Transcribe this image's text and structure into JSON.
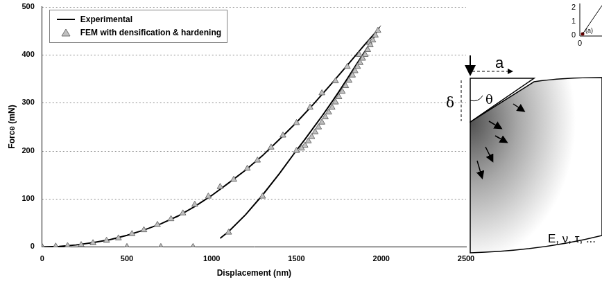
{
  "chart_data": {
    "type": "line",
    "x_label": "Displacement (nm)",
    "y_label": "Force (mN)",
    "xlim": [
      0,
      2500
    ],
    "xticks": [
      0,
      500,
      1000,
      1500,
      2000,
      2500
    ],
    "ylim": [
      0,
      500
    ],
    "yticks": [
      0,
      100,
      200,
      300,
      400,
      500
    ],
    "grid": true,
    "legend": "upper left",
    "series": [
      {
        "name": "Experimental",
        "color": "#000000",
        "type": "line",
        "marker": "none",
        "x": [
          0,
          100,
          200,
          300,
          400,
          500,
          600,
          700,
          800,
          900,
          1000,
          1100,
          1200,
          1300,
          1400,
          1500,
          1600,
          1700,
          1800,
          1900,
          1980,
          1950,
          1900,
          1850,
          1800,
          1750,
          1700,
          1650,
          1600,
          1550,
          1500,
          1400,
          1300,
          1200,
          1100,
          1050
        ],
        "values": [
          0,
          1,
          4,
          9,
          15,
          24,
          35,
          48,
          64,
          84,
          107,
          133,
          160,
          190,
          224,
          259,
          297,
          337,
          378,
          420,
          452,
          432,
          405,
          378,
          350,
          323,
          297,
          272,
          248,
          224,
          201,
          153,
          108,
          67,
          32,
          18
        ]
      },
      {
        "name": "FEM with densification & hardening",
        "color": "#c0c0c0",
        "type": "scatter",
        "marker": "triangle",
        "x": [
          0,
          80,
          150,
          230,
          300,
          380,
          450,
          530,
          600,
          680,
          760,
          830,
          900,
          980,
          1050,
          1130,
          1210,
          1270,
          1350,
          1420,
          1500,
          1580,
          1650,
          1730,
          1800,
          1870,
          1930,
          1980,
          1965,
          1950,
          1935,
          1920,
          1905,
          1890,
          1875,
          1860,
          1845,
          1830,
          1810,
          1790,
          1770,
          1750,
          1730,
          1710,
          1690,
          1670,
          1650,
          1630,
          1610,
          1590,
          1570,
          1550,
          1530,
          1500,
          1300,
          1100,
          500,
          700,
          890
        ],
        "values": [
          0,
          1,
          2,
          4,
          8,
          13,
          18,
          27,
          35,
          46,
          58,
          70,
          88,
          105,
          125,
          140,
          163,
          180,
          207,
          232,
          258,
          290,
          320,
          345,
          375,
          400,
          425,
          450,
          440,
          430,
          420,
          410,
          400,
          392,
          383,
          375,
          366,
          357,
          346,
          335,
          323,
          312,
          301,
          290,
          280,
          270,
          259,
          249,
          239,
          229,
          220,
          211,
          205,
          200,
          105,
          30,
          0,
          0,
          0
        ]
      }
    ]
  },
  "diagram": {
    "width_label": "a",
    "depth_label": "δ",
    "angle_label": "θ",
    "material_label": "E, ν, τ, ..."
  },
  "inset_fragment": {
    "yticks": [
      0,
      1,
      2
    ],
    "xticks": [
      0
    ],
    "point_label": "(a)"
  }
}
